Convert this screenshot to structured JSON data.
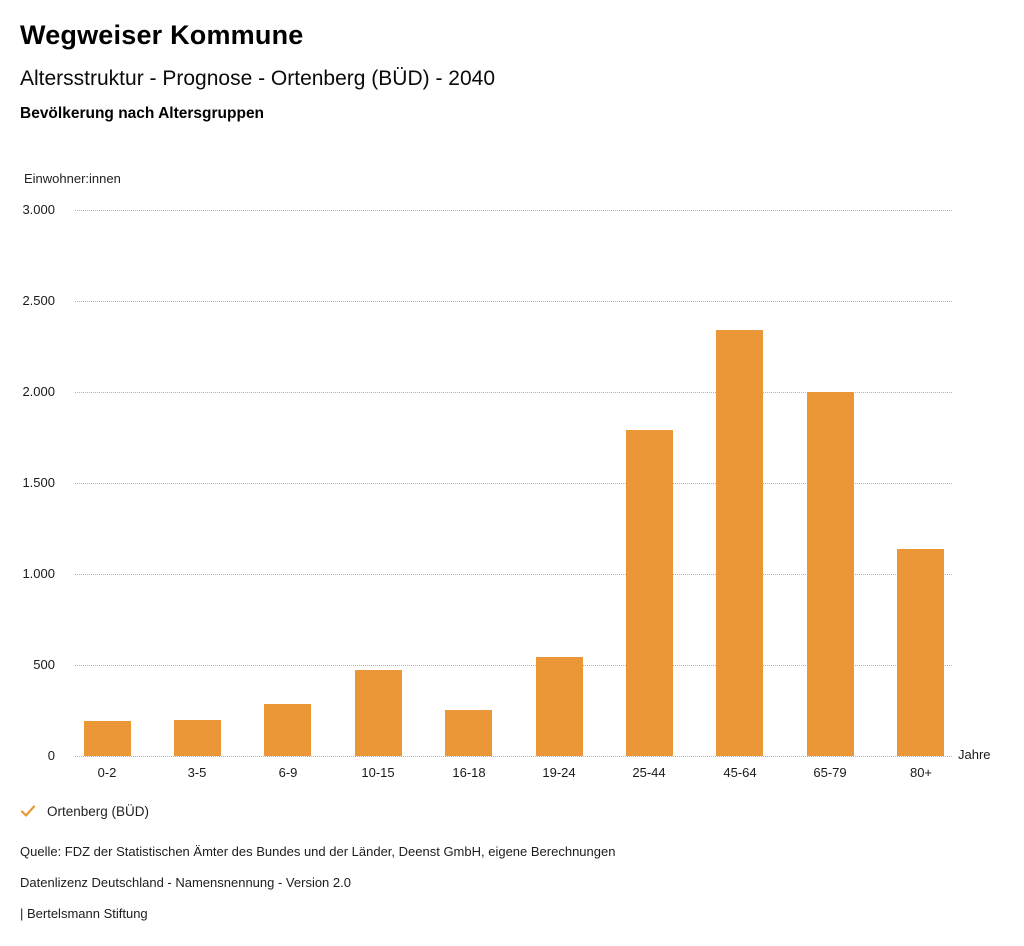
{
  "page": {
    "title": "Wegweiser Kommune",
    "subtitle": "Altersstruktur - Prognose - Ortenberg (BÜD) - 2040",
    "chart_heading": "Bevölkerung nach Altersgruppen"
  },
  "chart_data": {
    "type": "bar",
    "title": "Bevölkerung nach Altersgruppen",
    "categories": [
      "0-2",
      "3-5",
      "6-9",
      "10-15",
      "16-18",
      "19-24",
      "25-44",
      "45-64",
      "65-79",
      "80+"
    ],
    "values": [
      190,
      200,
      285,
      470,
      250,
      545,
      1790,
      2340,
      2000,
      1140
    ],
    "series_name": "Ortenberg (BÜD)",
    "ylabel": "Einwohner:innen",
    "xlabel": "Jahre",
    "ylim": [
      0,
      3000
    ],
    "ytick_step": 500,
    "ytick_labels_top_to_bottom": [
      "3.000",
      "2.500",
      "2.000",
      "1.500",
      "1.000",
      "500",
      "0"
    ],
    "grid": "horizontal-dotted",
    "bar_color": "#EC9737",
    "legend_position": "bottom-left"
  },
  "legend": {
    "check_icon_color": "#E8953A",
    "label": "Ortenberg (BÜD)"
  },
  "footer": {
    "source": "Quelle: FDZ der Statistischen Ämter des Bundes und der Länder, Deenst GmbH, eigene Berechnungen",
    "license": "Datenlizenz Deutschland - Namensnennung - Version 2.0",
    "publisher": "| Bertelsmann Stiftung"
  }
}
